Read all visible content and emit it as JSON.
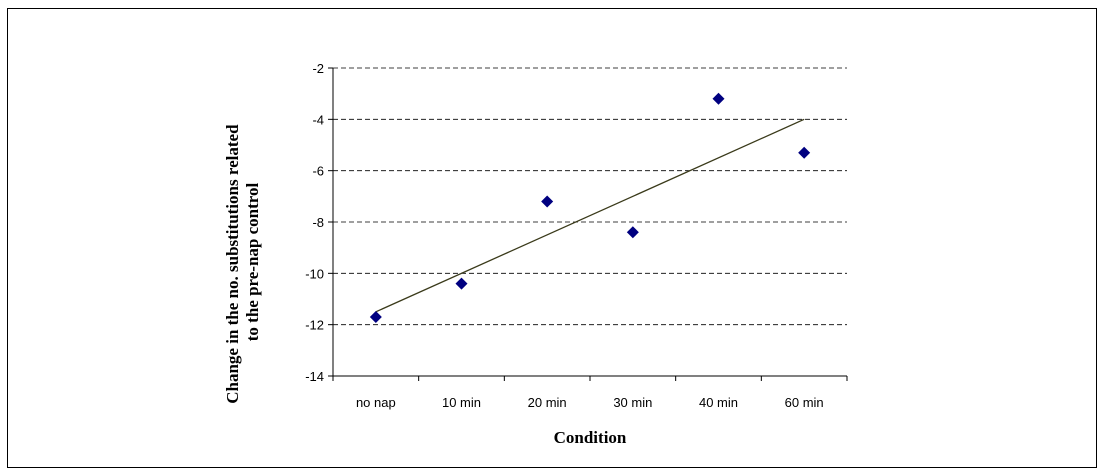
{
  "chart_data": {
    "type": "scatter",
    "title": "",
    "xlabel": "Condition",
    "ylabel_lines": [
      "Change in the no. substitutions related",
      "to the pre-nap control"
    ],
    "categories": [
      "no nap",
      "10 min",
      "20 min",
      "30 min",
      "40 min",
      "60 min"
    ],
    "series": [
      {
        "values": [
          -11.7,
          -10.4,
          -7.2,
          -8.4,
          -3.2,
          -5.3
        ],
        "color": "#000080",
        "marker": "diamond"
      }
    ],
    "trendline": {
      "type": "linear",
      "start": -11.5,
      "end": -4.0,
      "color": "#3a3a1a"
    },
    "ylim": [
      -14,
      -2
    ],
    "yticks": [
      -2,
      -4,
      -6,
      -8,
      -10,
      -12,
      -14
    ],
    "grid": "horizontal-dashed",
    "legend": "none"
  }
}
